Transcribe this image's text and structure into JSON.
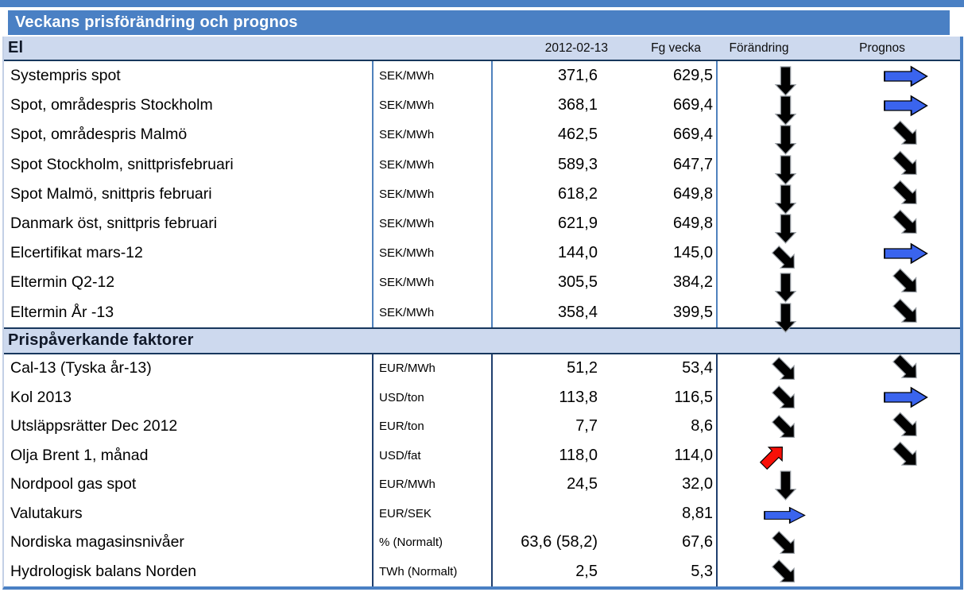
{
  "title": "Veckans prisförändring och prognos",
  "columns": {
    "date": "2012-02-13",
    "prev": "Fg vecka",
    "change": "Förändring",
    "forecast": "Prognos"
  },
  "colors": {
    "accent_blue": "#4a80c4",
    "band_blue": "#cdd9ee",
    "navy_border": "#17375d",
    "arrow_black": "#010101",
    "arrow_blue": "#3a64ee",
    "arrow_red": "#f80f07"
  },
  "sections": [
    {
      "label": "El",
      "rows": [
        {
          "name": "Systempris spot",
          "unit": "SEK/MWh",
          "value": "371,6",
          "prev": "629,5",
          "change": {
            "direction": "down",
            "color": "black"
          },
          "forecast": {
            "direction": "right",
            "color": "blue"
          }
        },
        {
          "name": "Spot, områdespris Stockholm",
          "unit": "SEK/MWh",
          "value": "368,1",
          "prev": "669,4",
          "change": {
            "direction": "down",
            "color": "black"
          },
          "forecast": {
            "direction": "right",
            "color": "blue"
          }
        },
        {
          "name": "Spot, områdespris Malmö",
          "unit": "SEK/MWh",
          "value": "462,5",
          "prev": "669,4",
          "change": {
            "direction": "down",
            "color": "black"
          },
          "forecast": {
            "direction": "down-right",
            "color": "black"
          }
        },
        {
          "name": "Spot Stockholm, snittprisfebruari",
          "unit": "SEK/MWh",
          "value": "589,3",
          "prev": "647,7",
          "change": {
            "direction": "down",
            "color": "black"
          },
          "forecast": {
            "direction": "down-right",
            "color": "black"
          }
        },
        {
          "name": "Spot Malmö, snittpris februari",
          "unit": "SEK/MWh",
          "value": "618,2",
          "prev": "649,8",
          "change": {
            "direction": "down",
            "color": "black"
          },
          "forecast": {
            "direction": "down-right",
            "color": "black"
          }
        },
        {
          "name": "Danmark öst, snittpris februari",
          "unit": "SEK/MWh",
          "value": "621,9",
          "prev": "649,8",
          "change": {
            "direction": "down",
            "color": "black"
          },
          "forecast": {
            "direction": "down-right",
            "color": "black"
          }
        },
        {
          "name": "Elcertifikat mars-12",
          "unit": "SEK/MWh",
          "value": "144,0",
          "prev": "145,0",
          "change": {
            "direction": "down-right",
            "color": "black"
          },
          "forecast": {
            "direction": "right",
            "color": "blue"
          }
        },
        {
          "name": "Eltermin Q2-12",
          "unit": "SEK/MWh",
          "value": "305,5",
          "prev": "384,2",
          "change": {
            "direction": "down",
            "color": "black"
          },
          "forecast": {
            "direction": "down-right",
            "color": "black"
          }
        },
        {
          "name": "Eltermin År -13",
          "unit": "SEK/MWh",
          "value": "358,4",
          "prev": "399,5",
          "change": {
            "direction": "down",
            "color": "black"
          },
          "forecast": {
            "direction": "down-right",
            "color": "black"
          }
        }
      ]
    },
    {
      "label": "Prispåverkande faktorer",
      "rows": [
        {
          "name": "Cal-13 (Tyska år-13)",
          "unit": "EUR/MWh",
          "value": "51,2",
          "prev": "53,4",
          "change": {
            "direction": "down-right",
            "color": "black"
          },
          "forecast": {
            "direction": "down-right",
            "color": "black"
          }
        },
        {
          "name": "Kol 2013",
          "unit": "USD/ton",
          "value": "113,8",
          "prev": "116,5",
          "change": {
            "direction": "down-right",
            "color": "black"
          },
          "forecast": {
            "direction": "right",
            "color": "blue"
          }
        },
        {
          "name": "Utsläppsrätter Dec 2012",
          "unit": "EUR/ton",
          "value": "7,7",
          "prev": "8,6",
          "change": {
            "direction": "down-right",
            "color": "black"
          },
          "forecast": {
            "direction": "down-right",
            "color": "black"
          }
        },
        {
          "name": "Olja Brent 1, månad",
          "unit": "USD/fat",
          "value": "118,0",
          "prev": "114,0",
          "change": {
            "direction": "up-right",
            "color": "red"
          },
          "forecast": {
            "direction": "down-right",
            "color": "black"
          }
        },
        {
          "name": "Nordpool gas spot",
          "unit": "EUR/MWh",
          "value": "24,5",
          "prev": "32,0",
          "change": {
            "direction": "down",
            "color": "black"
          },
          "forecast": null
        },
        {
          "name": "Valutakurs",
          "unit": "EUR/SEK",
          "value": "",
          "prev": "8,81",
          "change": {
            "direction": "right",
            "color": "blue"
          },
          "forecast": null
        },
        {
          "name": "Nordiska magasinsnivåer",
          "unit": "% (Normalt)",
          "value": "63,6 (58,2)",
          "prev": "67,6",
          "change": {
            "direction": "down-right",
            "color": "black"
          },
          "forecast": null
        },
        {
          "name": "Hydrologisk balans Norden",
          "unit": "TWh (Normalt)",
          "value": "2,5",
          "prev": "5,3",
          "change": {
            "direction": "down-right",
            "color": "black"
          },
          "forecast": null
        }
      ]
    }
  ]
}
